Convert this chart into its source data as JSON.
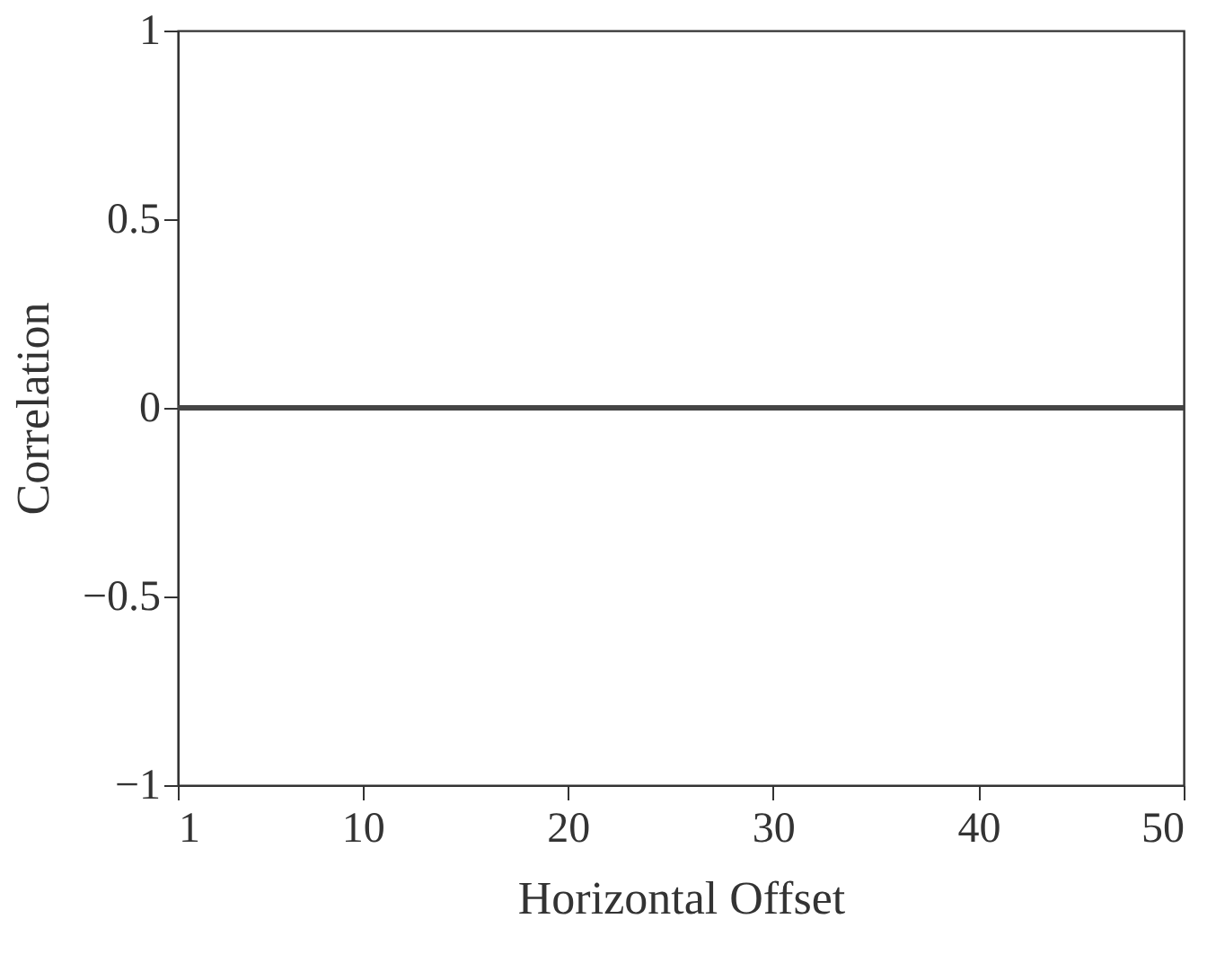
{
  "chart_data": {
    "type": "line",
    "xlabel": "Horizontal Offset",
    "ylabel": "Correlation",
    "x": [
      1,
      50
    ],
    "series": [
      {
        "color": "#454545",
        "values": [
          0,
          0
        ]
      }
    ],
    "xlim": [
      1,
      50
    ],
    "xticks": [
      1,
      10,
      20,
      30,
      40,
      50
    ],
    "ylim": [
      -1,
      1
    ],
    "yticks": [
      -1,
      -0.5,
      0,
      0.5,
      1
    ],
    "grid": false,
    "legend": false,
    "marker": "none",
    "line_style": "solid"
  }
}
